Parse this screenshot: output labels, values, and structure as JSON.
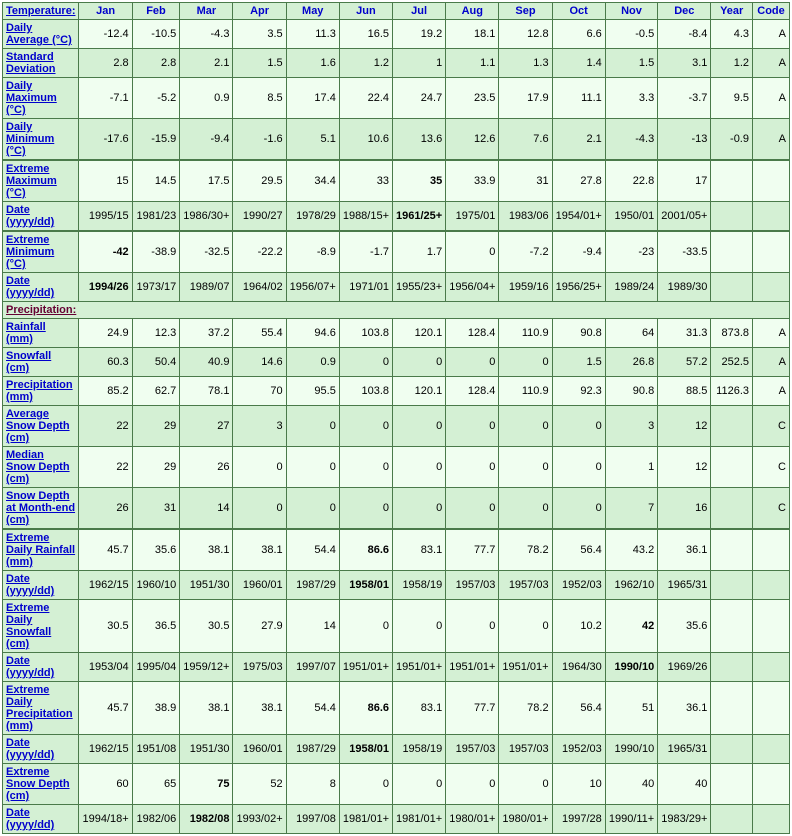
{
  "columns": [
    "Jan",
    "Feb",
    "Mar",
    "Apr",
    "May",
    "Jun",
    "Jul",
    "Aug",
    "Sep",
    "Oct",
    "Nov",
    "Dec",
    "Year",
    "Code"
  ],
  "section_temperature": "Temperature:",
  "section_precip": "Precipitation:",
  "rows": [
    {
      "id": "daily-avg",
      "label": "Daily Average (°C)",
      "shade": "light",
      "thick": false,
      "cells": [
        {
          "v": "-12.4"
        },
        {
          "v": "-10.5"
        },
        {
          "v": "-4.3"
        },
        {
          "v": "3.5"
        },
        {
          "v": "11.3"
        },
        {
          "v": "16.5"
        },
        {
          "v": "19.2"
        },
        {
          "v": "18.1"
        },
        {
          "v": "12.8"
        },
        {
          "v": "6.6"
        },
        {
          "v": "-0.5"
        },
        {
          "v": "-8.4"
        },
        {
          "v": "4.3"
        },
        {
          "v": "A"
        }
      ]
    },
    {
      "id": "std-dev",
      "label": "Standard Deviation",
      "shade": "dark",
      "thick": false,
      "cells": [
        {
          "v": "2.8"
        },
        {
          "v": "2.8"
        },
        {
          "v": "2.1"
        },
        {
          "v": "1.5"
        },
        {
          "v": "1.6"
        },
        {
          "v": "1.2"
        },
        {
          "v": "1"
        },
        {
          "v": "1.1"
        },
        {
          "v": "1.3"
        },
        {
          "v": "1.4"
        },
        {
          "v": "1.5"
        },
        {
          "v": "3.1"
        },
        {
          "v": "1.2"
        },
        {
          "v": "A"
        }
      ]
    },
    {
      "id": "daily-max",
      "label": "Daily Maximum (°C)",
      "shade": "light",
      "thick": false,
      "cells": [
        {
          "v": "-7.1"
        },
        {
          "v": "-5.2"
        },
        {
          "v": "0.9"
        },
        {
          "v": "8.5"
        },
        {
          "v": "17.4"
        },
        {
          "v": "22.4"
        },
        {
          "v": "24.7"
        },
        {
          "v": "23.5"
        },
        {
          "v": "17.9"
        },
        {
          "v": "11.1"
        },
        {
          "v": "3.3"
        },
        {
          "v": "-3.7"
        },
        {
          "v": "9.5"
        },
        {
          "v": "A"
        }
      ]
    },
    {
      "id": "daily-min",
      "label": "Daily Minimum (°C)",
      "shade": "dark",
      "thick": true,
      "cells": [
        {
          "v": "-17.6"
        },
        {
          "v": "-15.9"
        },
        {
          "v": "-9.4"
        },
        {
          "v": "-1.6"
        },
        {
          "v": "5.1"
        },
        {
          "v": "10.6"
        },
        {
          "v": "13.6"
        },
        {
          "v": "12.6"
        },
        {
          "v": "7.6"
        },
        {
          "v": "2.1"
        },
        {
          "v": "-4.3"
        },
        {
          "v": "-13"
        },
        {
          "v": "-0.9"
        },
        {
          "v": "A"
        }
      ]
    },
    {
      "id": "ext-max",
      "label": "Extreme Maximum (°C)",
      "shade": "light",
      "thick": false,
      "cells": [
        {
          "v": "15"
        },
        {
          "v": "14.5"
        },
        {
          "v": "17.5"
        },
        {
          "v": "29.5"
        },
        {
          "v": "34.4"
        },
        {
          "v": "33"
        },
        {
          "v": "35",
          "b": true
        },
        {
          "v": "33.9"
        },
        {
          "v": "31"
        },
        {
          "v": "27.8"
        },
        {
          "v": "22.8"
        },
        {
          "v": "17"
        },
        {
          "v": ""
        },
        {
          "v": ""
        }
      ]
    },
    {
      "id": "ext-max-date",
      "label": "Date (yyyy/dd)",
      "shade": "dark",
      "thick": true,
      "cells": [
        {
          "v": "1995/15"
        },
        {
          "v": "1981/23"
        },
        {
          "v": "1986/30+"
        },
        {
          "v": "1990/27"
        },
        {
          "v": "1978/29"
        },
        {
          "v": "1988/15+"
        },
        {
          "v": "1961/25+",
          "b": true
        },
        {
          "v": "1975/01"
        },
        {
          "v": "1983/06"
        },
        {
          "v": "1954/01+"
        },
        {
          "v": "1950/01"
        },
        {
          "v": "2001/05+"
        },
        {
          "v": ""
        },
        {
          "v": ""
        }
      ]
    },
    {
      "id": "ext-min",
      "label": "Extreme Minimum (°C)",
      "shade": "light",
      "thick": false,
      "cells": [
        {
          "v": "-42",
          "b": true
        },
        {
          "v": "-38.9"
        },
        {
          "v": "-32.5"
        },
        {
          "v": "-22.2"
        },
        {
          "v": "-8.9"
        },
        {
          "v": "-1.7"
        },
        {
          "v": "1.7"
        },
        {
          "v": "0"
        },
        {
          "v": "-7.2"
        },
        {
          "v": "-9.4"
        },
        {
          "v": "-23"
        },
        {
          "v": "-33.5"
        },
        {
          "v": ""
        },
        {
          "v": ""
        }
      ]
    },
    {
      "id": "ext-min-date",
      "label": "Date (yyyy/dd)",
      "shade": "dark",
      "thick": false,
      "cells": [
        {
          "v": "1994/26",
          "b": true
        },
        {
          "v": "1973/17"
        },
        {
          "v": "1989/07"
        },
        {
          "v": "1964/02"
        },
        {
          "v": "1956/07+"
        },
        {
          "v": "1971/01"
        },
        {
          "v": "1955/23+"
        },
        {
          "v": "1956/04+"
        },
        {
          "v": "1959/16"
        },
        {
          "v": "1956/25+"
        },
        {
          "v": "1989/24"
        },
        {
          "v": "1989/30"
        },
        {
          "v": ""
        },
        {
          "v": ""
        }
      ]
    }
  ],
  "precip_rows": [
    {
      "id": "rainfall",
      "label": "Rainfall (mm)",
      "shade": "light",
      "thick": false,
      "cells": [
        {
          "v": "24.9"
        },
        {
          "v": "12.3"
        },
        {
          "v": "37.2"
        },
        {
          "v": "55.4"
        },
        {
          "v": "94.6"
        },
        {
          "v": "103.8"
        },
        {
          "v": "120.1"
        },
        {
          "v": "128.4"
        },
        {
          "v": "110.9"
        },
        {
          "v": "90.8"
        },
        {
          "v": "64"
        },
        {
          "v": "31.3"
        },
        {
          "v": "873.8"
        },
        {
          "v": "A"
        }
      ]
    },
    {
      "id": "snowfall",
      "label": "Snowfall (cm)",
      "shade": "dark",
      "thick": false,
      "cells": [
        {
          "v": "60.3"
        },
        {
          "v": "50.4"
        },
        {
          "v": "40.9"
        },
        {
          "v": "14.6"
        },
        {
          "v": "0.9"
        },
        {
          "v": "0"
        },
        {
          "v": "0"
        },
        {
          "v": "0"
        },
        {
          "v": "0"
        },
        {
          "v": "1.5"
        },
        {
          "v": "26.8"
        },
        {
          "v": "57.2"
        },
        {
          "v": "252.5"
        },
        {
          "v": "A"
        }
      ]
    },
    {
      "id": "precip",
      "label": "Precipitation (mm)",
      "shade": "light",
      "thick": false,
      "cells": [
        {
          "v": "85.2"
        },
        {
          "v": "62.7"
        },
        {
          "v": "78.1"
        },
        {
          "v": "70"
        },
        {
          "v": "95.5"
        },
        {
          "v": "103.8"
        },
        {
          "v": "120.1"
        },
        {
          "v": "128.4"
        },
        {
          "v": "110.9"
        },
        {
          "v": "92.3"
        },
        {
          "v": "90.8"
        },
        {
          "v": "88.5"
        },
        {
          "v": "1126.3"
        },
        {
          "v": "A"
        }
      ]
    },
    {
      "id": "avg-snow-depth",
      "label": "Average Snow Depth (cm)",
      "shade": "dark",
      "thick": false,
      "cells": [
        {
          "v": "22"
        },
        {
          "v": "29"
        },
        {
          "v": "27"
        },
        {
          "v": "3"
        },
        {
          "v": "0"
        },
        {
          "v": "0"
        },
        {
          "v": "0"
        },
        {
          "v": "0"
        },
        {
          "v": "0"
        },
        {
          "v": "0"
        },
        {
          "v": "3"
        },
        {
          "v": "12"
        },
        {
          "v": ""
        },
        {
          "v": "C"
        }
      ]
    },
    {
      "id": "med-snow-depth",
      "label": "Median Snow Depth (cm)",
      "shade": "light",
      "thick": false,
      "cells": [
        {
          "v": "22"
        },
        {
          "v": "29"
        },
        {
          "v": "26"
        },
        {
          "v": "0"
        },
        {
          "v": "0"
        },
        {
          "v": "0"
        },
        {
          "v": "0"
        },
        {
          "v": "0"
        },
        {
          "v": "0"
        },
        {
          "v": "0"
        },
        {
          "v": "1"
        },
        {
          "v": "12"
        },
        {
          "v": ""
        },
        {
          "v": "C"
        }
      ]
    },
    {
      "id": "snow-depth-end",
      "label": "Snow Depth at Month-end (cm)",
      "shade": "dark",
      "thick": true,
      "cells": [
        {
          "v": "26"
        },
        {
          "v": "31"
        },
        {
          "v": "14"
        },
        {
          "v": "0"
        },
        {
          "v": "0"
        },
        {
          "v": "0"
        },
        {
          "v": "0"
        },
        {
          "v": "0"
        },
        {
          "v": "0"
        },
        {
          "v": "0"
        },
        {
          "v": "7"
        },
        {
          "v": "16"
        },
        {
          "v": ""
        },
        {
          "v": "C"
        }
      ]
    },
    {
      "id": "ext-daily-rain",
      "label": "Extreme Daily Rainfall (mm)",
      "shade": "light",
      "thick": false,
      "cells": [
        {
          "v": "45.7"
        },
        {
          "v": "35.6"
        },
        {
          "v": "38.1"
        },
        {
          "v": "38.1"
        },
        {
          "v": "54.4"
        },
        {
          "v": "86.6",
          "b": true
        },
        {
          "v": "83.1"
        },
        {
          "v": "77.7"
        },
        {
          "v": "78.2"
        },
        {
          "v": "56.4"
        },
        {
          "v": "43.2"
        },
        {
          "v": "36.1"
        },
        {
          "v": ""
        },
        {
          "v": ""
        }
      ]
    },
    {
      "id": "ext-daily-rain-date",
      "label": "Date (yyyy/dd)",
      "shade": "dark",
      "thick": false,
      "cells": [
        {
          "v": "1962/15"
        },
        {
          "v": "1960/10"
        },
        {
          "v": "1951/30"
        },
        {
          "v": "1960/01"
        },
        {
          "v": "1987/29"
        },
        {
          "v": "1958/01",
          "b": true
        },
        {
          "v": "1958/19"
        },
        {
          "v": "1957/03"
        },
        {
          "v": "1957/03"
        },
        {
          "v": "1952/03"
        },
        {
          "v": "1962/10"
        },
        {
          "v": "1965/31"
        },
        {
          "v": ""
        },
        {
          "v": ""
        }
      ]
    },
    {
      "id": "ext-daily-snow",
      "label": "Extreme Daily Snowfall (cm)",
      "shade": "light",
      "thick": false,
      "cells": [
        {
          "v": "30.5"
        },
        {
          "v": "36.5"
        },
        {
          "v": "30.5"
        },
        {
          "v": "27.9"
        },
        {
          "v": "14"
        },
        {
          "v": "0"
        },
        {
          "v": "0"
        },
        {
          "v": "0"
        },
        {
          "v": "0"
        },
        {
          "v": "10.2"
        },
        {
          "v": "42",
          "b": true
        },
        {
          "v": "35.6"
        },
        {
          "v": ""
        },
        {
          "v": ""
        }
      ]
    },
    {
      "id": "ext-daily-snow-date",
      "label": "Date (yyyy/dd)",
      "shade": "dark",
      "thick": false,
      "cells": [
        {
          "v": "1953/04"
        },
        {
          "v": "1995/04"
        },
        {
          "v": "1959/12+"
        },
        {
          "v": "1975/03"
        },
        {
          "v": "1997/07"
        },
        {
          "v": "1951/01+"
        },
        {
          "v": "1951/01+"
        },
        {
          "v": "1951/01+"
        },
        {
          "v": "1951/01+"
        },
        {
          "v": "1964/30"
        },
        {
          "v": "1990/10",
          "b": true
        },
        {
          "v": "1969/26"
        },
        {
          "v": ""
        },
        {
          "v": ""
        }
      ]
    },
    {
      "id": "ext-daily-precip",
      "label": "Extreme Daily Precipitation (mm)",
      "shade": "light",
      "thick": false,
      "cells": [
        {
          "v": "45.7"
        },
        {
          "v": "38.9"
        },
        {
          "v": "38.1"
        },
        {
          "v": "38.1"
        },
        {
          "v": "54.4"
        },
        {
          "v": "86.6",
          "b": true
        },
        {
          "v": "83.1"
        },
        {
          "v": "77.7"
        },
        {
          "v": "78.2"
        },
        {
          "v": "56.4"
        },
        {
          "v": "51"
        },
        {
          "v": "36.1"
        },
        {
          "v": ""
        },
        {
          "v": ""
        }
      ]
    },
    {
      "id": "ext-daily-precip-date",
      "label": "Date (yyyy/dd)",
      "shade": "dark",
      "thick": false,
      "cells": [
        {
          "v": "1962/15"
        },
        {
          "v": "1951/08"
        },
        {
          "v": "1951/30"
        },
        {
          "v": "1960/01"
        },
        {
          "v": "1987/29"
        },
        {
          "v": "1958/01",
          "b": true
        },
        {
          "v": "1958/19"
        },
        {
          "v": "1957/03"
        },
        {
          "v": "1957/03"
        },
        {
          "v": "1952/03"
        },
        {
          "v": "1990/10"
        },
        {
          "v": "1965/31"
        },
        {
          "v": ""
        },
        {
          "v": ""
        }
      ]
    },
    {
      "id": "ext-snow-depth",
      "label": "Extreme Snow Depth (cm)",
      "shade": "light",
      "thick": false,
      "cells": [
        {
          "v": "60"
        },
        {
          "v": "65"
        },
        {
          "v": "75",
          "b": true
        },
        {
          "v": "52"
        },
        {
          "v": "8"
        },
        {
          "v": "0"
        },
        {
          "v": "0"
        },
        {
          "v": "0"
        },
        {
          "v": "0"
        },
        {
          "v": "10"
        },
        {
          "v": "40"
        },
        {
          "v": "40"
        },
        {
          "v": ""
        },
        {
          "v": ""
        }
      ]
    },
    {
      "id": "ext-snow-depth-date",
      "label": "Date (yyyy/dd)",
      "shade": "dark",
      "thick": false,
      "cells": [
        {
          "v": "1994/18+"
        },
        {
          "v": "1982/06"
        },
        {
          "v": "1982/08",
          "b": true
        },
        {
          "v": "1993/02+"
        },
        {
          "v": "1997/08"
        },
        {
          "v": "1981/01+"
        },
        {
          "v": "1981/01+"
        },
        {
          "v": "1980/01+"
        },
        {
          "v": "1980/01+"
        },
        {
          "v": "1997/28"
        },
        {
          "v": "1990/11+"
        },
        {
          "v": "1983/29+"
        },
        {
          "v": ""
        },
        {
          "v": ""
        }
      ]
    }
  ]
}
